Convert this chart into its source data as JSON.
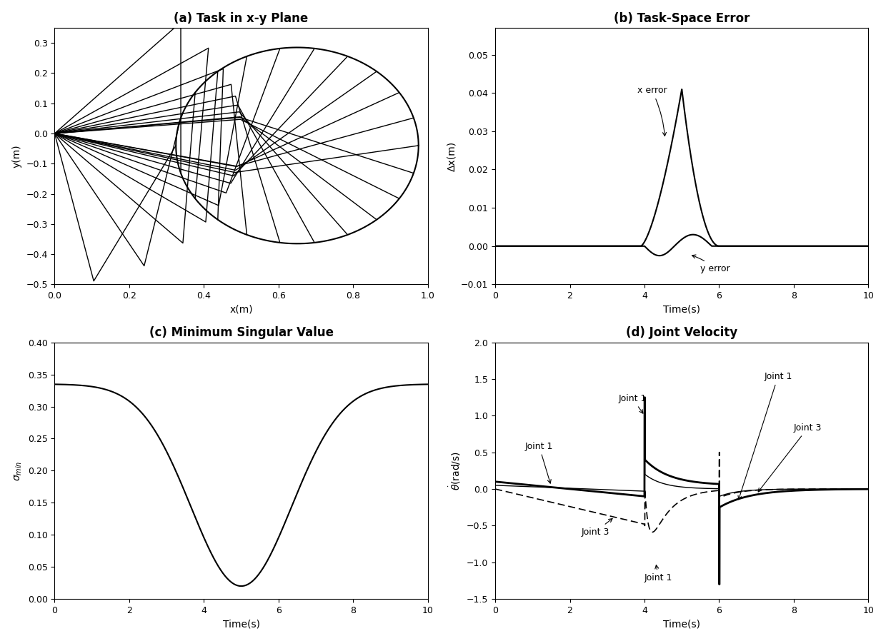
{
  "title_a": "(a) Task in x-y Plane",
  "title_b": "(b) Task-Space Error",
  "title_c": "(c) Minimum Singular Value",
  "title_d": "(d) Joint Velocity",
  "xlabel_a": "x(m)",
  "ylabel_a": "y(m)",
  "xlabel_b": "Time(s)",
  "ylabel_b": "Δx(m)",
  "xlabel_c": "Time(s)",
  "ylabel_c": "σ_min",
  "xlabel_d": "Time(s)",
  "ylabel_d": "θ(rad/s)",
  "xlim_a": [
    0,
    1
  ],
  "ylim_a": [
    -0.5,
    0.35
  ],
  "xlim_b": [
    0,
    10
  ],
  "ylim_b": [
    -0.01,
    0.057
  ],
  "xlim_c": [
    0,
    10
  ],
  "ylim_c": [
    0,
    0.4
  ],
  "xlim_d": [
    0,
    10
  ],
  "ylim_d": [
    -1.5,
    2.0
  ],
  "line_color": "#000000",
  "bg_color": "#ffffff",
  "font_size_title": 12,
  "font_size_label": 10,
  "font_size_tick": 9,
  "font_size_annot": 9
}
